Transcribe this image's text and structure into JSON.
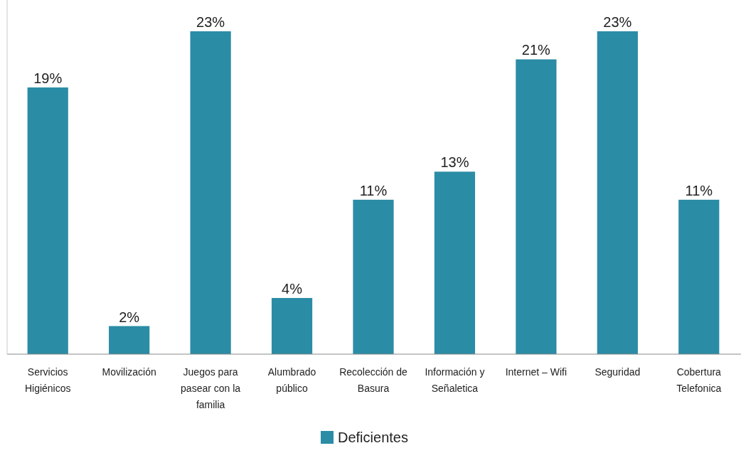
{
  "chart_data": {
    "type": "bar",
    "categories": [
      "Servicios Higiénicos",
      "Movilización",
      "Juegos para pasear con la familia",
      "Alumbrado público",
      "Recolección de Basura",
      "Información y Señaletica",
      "Internet – Wifi",
      "Seguridad",
      "Cobertura Telefonica"
    ],
    "series": [
      {
        "name": "Deficientes",
        "color": "#2b8ca6",
        "values": [
          19,
          2,
          23,
          4,
          11,
          13,
          21,
          23,
          11
        ],
        "value_labels": [
          "19%",
          "2%",
          "23%",
          "4%",
          "11%",
          "13%",
          "21%",
          "23%",
          "11%"
        ]
      }
    ],
    "legend": "bottom"
  }
}
